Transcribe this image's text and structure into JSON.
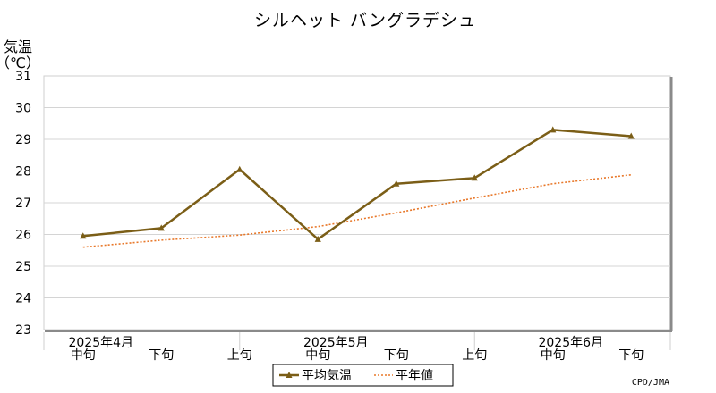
{
  "chart_data": {
    "type": "line",
    "title": "シルヘット バングラデシュ",
    "ylabel": "気温（℃）",
    "ylabel_lines": [
      "気温",
      "（℃）"
    ],
    "ylim": [
      23,
      31
    ],
    "yticks": [
      23,
      24,
      25,
      26,
      27,
      28,
      29,
      30,
      31
    ],
    "categories": [
      "中旬",
      "下旬",
      "上旬",
      "中旬",
      "下旬",
      "上旬",
      "中旬",
      "下旬"
    ],
    "months": [
      {
        "label": "2025年4月",
        "at": 0
      },
      {
        "label": "2025年5月",
        "at": 3
      },
      {
        "label": "2025年6月",
        "at": 6
      }
    ],
    "series": [
      {
        "name": "平均気温",
        "color": "#7b5e17",
        "style": "solid",
        "marker": "triangle",
        "values": [
          25.95,
          26.2,
          28.05,
          25.85,
          27.6,
          27.78,
          29.3,
          29.1
        ]
      },
      {
        "name": "平年値",
        "color": "#e8782a",
        "style": "dotted",
        "marker": "none",
        "values": [
          25.6,
          25.82,
          25.98,
          26.25,
          26.68,
          27.15,
          27.6,
          27.88
        ]
      }
    ],
    "grid": true,
    "legend": "bottom-center",
    "credit": "CPD/JMA"
  }
}
